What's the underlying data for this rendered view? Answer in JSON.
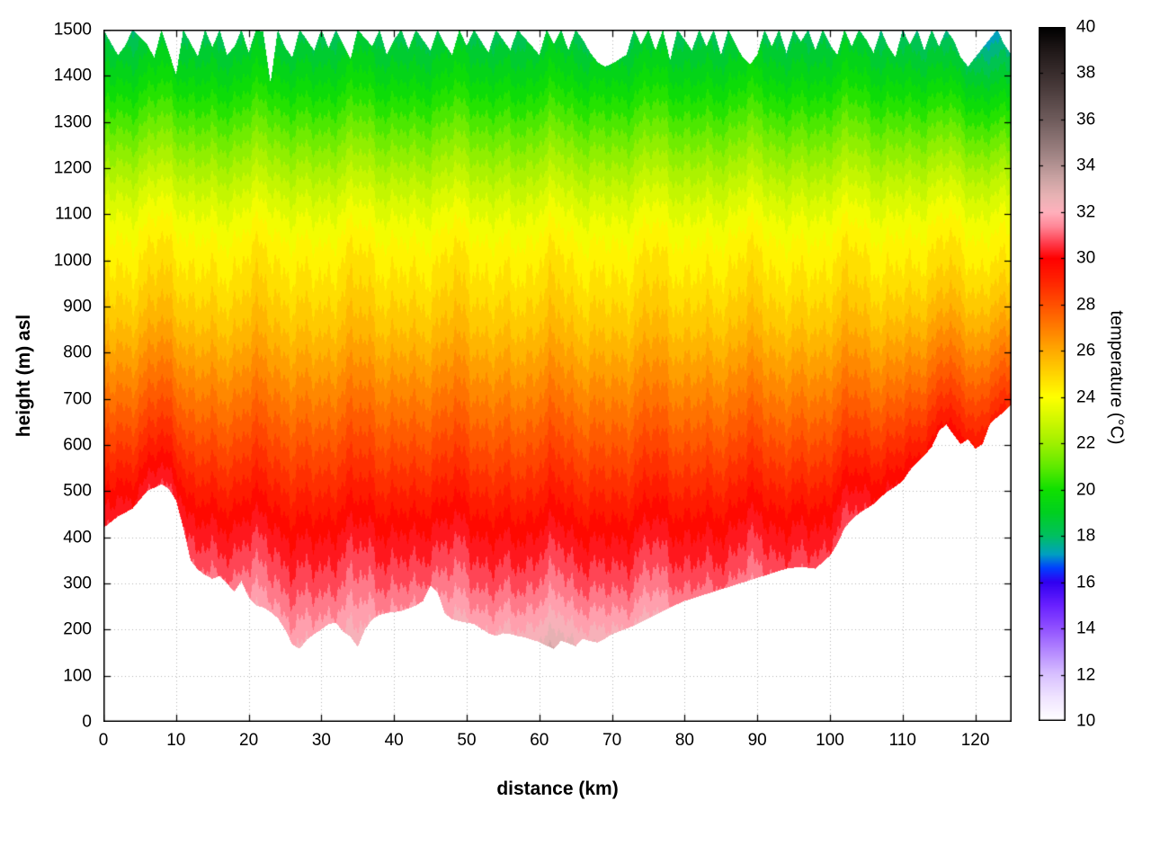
{
  "chart_data": {
    "type": "heatmap",
    "title": "",
    "xlabel": "distance (km)",
    "ylabel": "height (m) asl",
    "colorbar_label": "temperature (°C)",
    "xlim": [
      0,
      125
    ],
    "ylim": [
      0,
      1500
    ],
    "clim": [
      10,
      40
    ],
    "grid": "dotted",
    "legend_position": "right-colorbar",
    "band_step_c": 0.5,
    "x_ticks": [
      0,
      10,
      20,
      30,
      40,
      50,
      60,
      70,
      80,
      90,
      100,
      110,
      120
    ],
    "y_ticks": [
      0,
      100,
      200,
      300,
      400,
      500,
      600,
      700,
      800,
      900,
      1000,
      1100,
      1200,
      1300,
      1400,
      1500
    ],
    "cb_ticks": [
      10,
      12,
      14,
      16,
      18,
      20,
      22,
      24,
      26,
      28,
      30,
      32,
      34,
      36,
      38,
      40
    ],
    "colormap": [
      [
        10,
        "#ffffff"
      ],
      [
        11,
        "#f0e4ff"
      ],
      [
        12,
        "#d8c0ff"
      ],
      [
        13,
        "#b488ff"
      ],
      [
        14,
        "#9050ff"
      ],
      [
        15,
        "#6820ff"
      ],
      [
        16,
        "#3000f0"
      ],
      [
        16.6,
        "#0040ff"
      ],
      [
        17.2,
        "#00a0c0"
      ],
      [
        18,
        "#00c060"
      ],
      [
        19,
        "#00d020"
      ],
      [
        20,
        "#10e000"
      ],
      [
        21,
        "#60ea00"
      ],
      [
        22,
        "#a0f000"
      ],
      [
        23,
        "#d0f800"
      ],
      [
        24,
        "#ffff00"
      ],
      [
        25,
        "#ffd400"
      ],
      [
        26,
        "#ffaa00"
      ],
      [
        27,
        "#ff7d00"
      ],
      [
        28,
        "#ff5000"
      ],
      [
        29,
        "#ff2400"
      ],
      [
        30,
        "#ff0000"
      ],
      [
        30.7,
        "#ff4050"
      ],
      [
        31.4,
        "#ff8898"
      ],
      [
        32,
        "#ffb0bc"
      ],
      [
        32.7,
        "#e8b2b4"
      ],
      [
        33.5,
        "#c9a2a2"
      ],
      [
        34.5,
        "#a08484"
      ],
      [
        36,
        "#6f5c5c"
      ],
      [
        37.5,
        "#463838"
      ],
      [
        39,
        "#201818"
      ],
      [
        40,
        "#000000"
      ]
    ],
    "temperature_vs_height": [
      [
        100,
        32.6
      ],
      [
        150,
        32.3
      ],
      [
        200,
        31.8
      ],
      [
        250,
        31.3
      ],
      [
        300,
        30.8
      ],
      [
        350,
        30.4
      ],
      [
        400,
        30.0
      ],
      [
        450,
        29.5
      ],
      [
        500,
        29.0
      ],
      [
        550,
        28.5
      ],
      [
        600,
        28.0
      ],
      [
        650,
        27.5
      ],
      [
        700,
        27.0
      ],
      [
        750,
        26.5
      ],
      [
        800,
        26.0
      ],
      [
        850,
        25.5
      ],
      [
        900,
        25.1
      ],
      [
        950,
        24.7
      ],
      [
        1000,
        24.4
      ],
      [
        1050,
        24.0
      ],
      [
        1100,
        23.5
      ],
      [
        1150,
        22.9
      ],
      [
        1200,
        22.2
      ],
      [
        1250,
        21.5
      ],
      [
        1300,
        20.8
      ],
      [
        1350,
        20.1
      ],
      [
        1400,
        19.4
      ],
      [
        1450,
        18.8
      ],
      [
        1500,
        18.2
      ]
    ],
    "terrain_profile": [
      [
        0,
        420
      ],
      [
        2,
        445
      ],
      [
        4,
        462
      ],
      [
        6,
        500
      ],
      [
        8,
        515
      ],
      [
        9,
        505
      ],
      [
        10,
        480
      ],
      [
        11,
        420
      ],
      [
        12,
        350
      ],
      [
        13,
        330
      ],
      [
        14,
        318
      ],
      [
        15,
        310
      ],
      [
        16,
        316
      ],
      [
        17,
        300
      ],
      [
        18,
        282
      ],
      [
        19,
        305
      ],
      [
        20,
        270
      ],
      [
        21,
        252
      ],
      [
        22,
        248
      ],
      [
        23,
        238
      ],
      [
        24,
        225
      ],
      [
        25,
        200
      ],
      [
        26,
        168
      ],
      [
        27,
        158
      ],
      [
        28,
        178
      ],
      [
        29,
        190
      ],
      [
        30,
        200
      ],
      [
        31,
        212
      ],
      [
        32,
        215
      ],
      [
        33,
        195
      ],
      [
        34,
        185
      ],
      [
        35,
        162
      ],
      [
        36,
        200
      ],
      [
        37,
        222
      ],
      [
        38,
        232
      ],
      [
        39,
        236
      ],
      [
        40,
        238
      ],
      [
        41,
        240
      ],
      [
        42,
        246
      ],
      [
        43,
        252
      ],
      [
        44,
        262
      ],
      [
        45,
        295
      ],
      [
        46,
        280
      ],
      [
        47,
        235
      ],
      [
        48,
        222
      ],
      [
        49,
        218
      ],
      [
        50,
        215
      ],
      [
        51,
        212
      ],
      [
        52,
        202
      ],
      [
        53,
        192
      ],
      [
        54,
        186
      ],
      [
        55,
        192
      ],
      [
        56,
        190
      ],
      [
        57,
        186
      ],
      [
        58,
        183
      ],
      [
        59,
        178
      ],
      [
        60,
        173
      ],
      [
        61,
        165
      ],
      [
        62,
        158
      ],
      [
        63,
        176
      ],
      [
        64,
        170
      ],
      [
        65,
        164
      ],
      [
        66,
        180
      ],
      [
        67,
        175
      ],
      [
        68,
        172
      ],
      [
        69,
        180
      ],
      [
        70,
        190
      ],
      [
        71,
        196
      ],
      [
        72,
        202
      ],
      [
        73,
        208
      ],
      [
        74,
        216
      ],
      [
        75,
        224
      ],
      [
        76,
        232
      ],
      [
        77,
        240
      ],
      [
        78,
        248
      ],
      [
        79,
        255
      ],
      [
        80,
        262
      ],
      [
        82,
        272
      ],
      [
        84,
        282
      ],
      [
        86,
        292
      ],
      [
        88,
        302
      ],
      [
        90,
        312
      ],
      [
        92,
        322
      ],
      [
        94,
        332
      ],
      [
        96,
        336
      ],
      [
        98,
        332
      ],
      [
        100,
        360
      ],
      [
        101,
        385
      ],
      [
        102,
        420
      ],
      [
        103,
        438
      ],
      [
        104,
        452
      ],
      [
        105,
        462
      ],
      [
        106,
        472
      ],
      [
        107,
        487
      ],
      [
        108,
        500
      ],
      [
        109,
        510
      ],
      [
        110,
        522
      ],
      [
        111,
        545
      ],
      [
        112,
        562
      ],
      [
        113,
        578
      ],
      [
        114,
        595
      ],
      [
        115,
        630
      ],
      [
        116,
        645
      ],
      [
        117,
        622
      ],
      [
        118,
        602
      ],
      [
        119,
        612
      ],
      [
        120,
        592
      ],
      [
        121,
        602
      ],
      [
        122,
        645
      ],
      [
        123,
        660
      ],
      [
        124,
        672
      ],
      [
        125,
        690
      ]
    ],
    "top_profile": [
      [
        0,
        1500
      ],
      [
        2,
        1445
      ],
      [
        3,
        1465
      ],
      [
        4,
        1500
      ],
      [
        6,
        1468
      ],
      [
        7,
        1440
      ],
      [
        8,
        1500
      ],
      [
        9,
        1452
      ],
      [
        10,
        1402
      ],
      [
        11,
        1500
      ],
      [
        13,
        1442
      ],
      [
        14,
        1500
      ],
      [
        15,
        1462
      ],
      [
        16,
        1500
      ],
      [
        17,
        1446
      ],
      [
        18,
        1462
      ],
      [
        19,
        1500
      ],
      [
        20,
        1450
      ],
      [
        21,
        1500
      ],
      [
        22,
        1495
      ],
      [
        23,
        1385
      ],
      [
        24,
        1500
      ],
      [
        25,
        1462
      ],
      [
        26,
        1440
      ],
      [
        27,
        1500
      ],
      [
        28,
        1478
      ],
      [
        29,
        1455
      ],
      [
        30,
        1500
      ],
      [
        31,
        1460
      ],
      [
        32,
        1500
      ],
      [
        33,
        1468
      ],
      [
        34,
        1436
      ],
      [
        35,
        1500
      ],
      [
        37,
        1464
      ],
      [
        38,
        1500
      ],
      [
        39,
        1446
      ],
      [
        40,
        1478
      ],
      [
        41,
        1500
      ],
      [
        42,
        1458
      ],
      [
        43,
        1500
      ],
      [
        45,
        1455
      ],
      [
        46,
        1500
      ],
      [
        47,
        1468
      ],
      [
        48,
        1445
      ],
      [
        49,
        1500
      ],
      [
        50,
        1464
      ],
      [
        51,
        1500
      ],
      [
        53,
        1450
      ],
      [
        54,
        1500
      ],
      [
        55,
        1478
      ],
      [
        56,
        1456
      ],
      [
        57,
        1500
      ],
      [
        59,
        1464
      ],
      [
        60,
        1445
      ],
      [
        61,
        1500
      ],
      [
        62,
        1468
      ],
      [
        63,
        1500
      ],
      [
        64,
        1455
      ],
      [
        65,
        1500
      ],
      [
        66,
        1478
      ],
      [
        67,
        1450
      ],
      [
        68,
        1430
      ],
      [
        69,
        1420
      ],
      [
        70,
        1426
      ],
      [
        71,
        1436
      ],
      [
        72,
        1446
      ],
      [
        73,
        1500
      ],
      [
        74,
        1468
      ],
      [
        75,
        1500
      ],
      [
        76,
        1455
      ],
      [
        77,
        1500
      ],
      [
        78,
        1434
      ],
      [
        79,
        1500
      ],
      [
        80,
        1478
      ],
      [
        81,
        1455
      ],
      [
        82,
        1500
      ],
      [
        83,
        1464
      ],
      [
        84,
        1500
      ],
      [
        85,
        1445
      ],
      [
        86,
        1500
      ],
      [
        87,
        1468
      ],
      [
        88,
        1440
      ],
      [
        89,
        1424
      ],
      [
        90,
        1446
      ],
      [
        91,
        1500
      ],
      [
        92,
        1464
      ],
      [
        93,
        1500
      ],
      [
        94,
        1450
      ],
      [
        95,
        1500
      ],
      [
        96,
        1474
      ],
      [
        97,
        1500
      ],
      [
        98,
        1455
      ],
      [
        99,
        1500
      ],
      [
        100,
        1468
      ],
      [
        101,
        1445
      ],
      [
        102,
        1500
      ],
      [
        103,
        1464
      ],
      [
        104,
        1500
      ],
      [
        105,
        1478
      ],
      [
        106,
        1450
      ],
      [
        107,
        1500
      ],
      [
        108,
        1464
      ],
      [
        109,
        1440
      ],
      [
        110,
        1500
      ],
      [
        111,
        1468
      ],
      [
        112,
        1500
      ],
      [
        113,
        1455
      ],
      [
        114,
        1500
      ],
      [
        115,
        1464
      ],
      [
        116,
        1500
      ],
      [
        117,
        1478
      ],
      [
        118,
        1440
      ],
      [
        119,
        1420
      ],
      [
        120,
        1440
      ],
      [
        121,
        1460
      ],
      [
        122,
        1480
      ],
      [
        123,
        1500
      ],
      [
        124,
        1468
      ],
      [
        125,
        1445
      ]
    ],
    "x_variation": [
      {
        "amp": 0.2,
        "period_km": 13.5,
        "phase": 4.1
      },
      {
        "amp": 0.15,
        "period_km": 6.8,
        "phase": 0.8
      },
      {
        "amp": 0.12,
        "period_km": 3.1,
        "phase": 2.4
      },
      {
        "amp": 0.1,
        "period_km": 1.45,
        "phase": 5.2
      },
      {
        "amp": 0.08,
        "period_km": 0.62,
        "phase": 1.1
      }
    ],
    "anomalies": [
      {
        "x_km": 64,
        "sigma_km": 9,
        "amp_c": 0.7,
        "ref": "ground",
        "decay_m": 140
      },
      {
        "x_km": 122,
        "sigma_km": 6,
        "amp_c": -1.2,
        "ref": "top",
        "decay_m": 220
      },
      {
        "x_km": 30,
        "sigma_km": 18,
        "amp_c": 0.25,
        "ref": "ground",
        "decay_m": 400
      }
    ],
    "terrain_following": {
      "strength": 0.45,
      "ref_m": 230,
      "decay_m": 260
    }
  }
}
